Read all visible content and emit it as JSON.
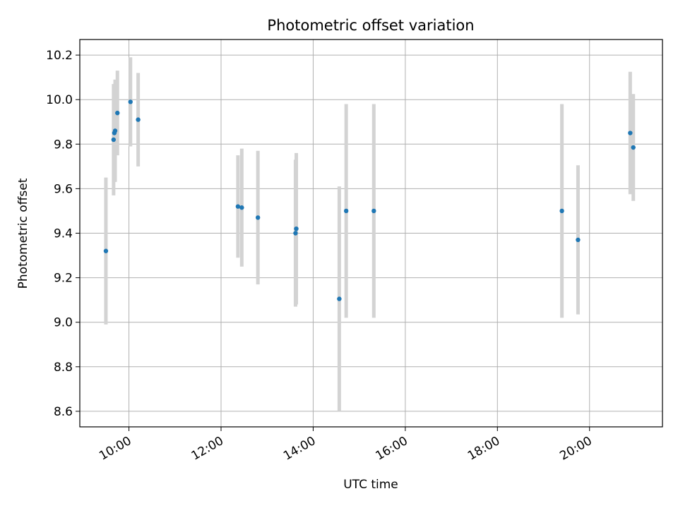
{
  "chart_data": {
    "type": "scatter",
    "title": "Photometric offset variation",
    "xlabel": "UTC time",
    "ylabel": "Photometric offset",
    "x_axis_kind": "time",
    "xlim": [
      "08:56",
      "21:35"
    ],
    "ylim": [
      8.53,
      10.27
    ],
    "x_ticks": [
      "10:00",
      "12:00",
      "14:00",
      "16:00",
      "18:00",
      "20:00"
    ],
    "y_ticks": [
      8.6,
      8.8,
      9.0,
      9.2,
      9.4,
      9.6,
      9.8,
      10.0,
      10.2
    ],
    "grid": true,
    "legend": "none",
    "colors": {
      "point": "#1f77b4",
      "errorbar": "#d3d3d3",
      "grid": "#b0b0b0"
    },
    "points": [
      {
        "x": "09:30",
        "y": 9.32,
        "err": 0.33
      },
      {
        "x": "09:40",
        "y": 9.82,
        "err": 0.25
      },
      {
        "x": "09:41",
        "y": 9.85,
        "err": 0.22
      },
      {
        "x": "09:42",
        "y": 9.86,
        "err": 0.23
      },
      {
        "x": "09:45",
        "y": 9.94,
        "err": 0.19
      },
      {
        "x": "10:02",
        "y": 9.99,
        "err": 0.2
      },
      {
        "x": "10:12",
        "y": 9.91,
        "err": 0.21
      },
      {
        "x": "12:22",
        "y": 9.52,
        "err": 0.23
      },
      {
        "x": "12:27",
        "y": 9.515,
        "err": 0.265
      },
      {
        "x": "12:48",
        "y": 9.47,
        "err": 0.3
      },
      {
        "x": "13:37",
        "y": 9.4,
        "err": 0.33
      },
      {
        "x": "13:38",
        "y": 9.42,
        "err": 0.34
      },
      {
        "x": "14:34",
        "y": 9.105,
        "err": 0.505
      },
      {
        "x": "14:43",
        "y": 9.5,
        "err": 0.48
      },
      {
        "x": "15:19",
        "y": 9.5,
        "err": 0.48
      },
      {
        "x": "19:24",
        "y": 9.5,
        "err": 0.48
      },
      {
        "x": "19:45",
        "y": 9.37,
        "err": 0.335
      },
      {
        "x": "20:53",
        "y": 9.85,
        "err": 0.275
      },
      {
        "x": "20:57",
        "y": 9.785,
        "err": 0.24
      }
    ]
  }
}
